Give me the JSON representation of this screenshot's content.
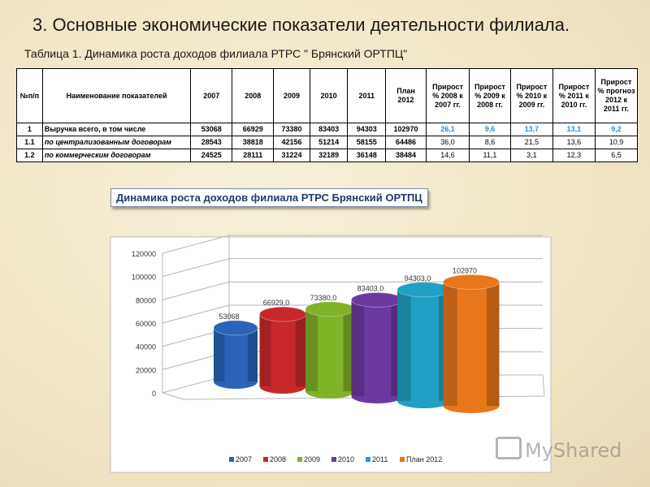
{
  "title": "3. Основные экономические показатели деятельности филиала.",
  "table_caption": "Таблица 1. Динамика роста доходов  филиала РТРС \" Брянский ОРТПЦ\"",
  "table": {
    "headers": [
      "№п/п",
      "Наименование показателей",
      "2007",
      "2008",
      "2009",
      "2010",
      "2011",
      "План 2012",
      "Прирост % 2008 к 2007 гг.",
      "Прирост % 2009 к 2008 гг.",
      "Прирост % 2010 к 2009 гг.",
      "Прирост % 2011 к 2010 гг.",
      "Прирост % прогноз 2012 к 2011 гг."
    ],
    "rows": [
      [
        "1",
        "Выручка всего, в том числе",
        "53068",
        "66929",
        "73380",
        "83403",
        "94303",
        "102970",
        "26,1",
        "9,6",
        "13,7",
        "13,1",
        "9,2"
      ],
      [
        "1.1",
        "по централизованным договорам",
        "28543",
        "38818",
        "42156",
        "51214",
        "58155",
        "64486",
        "36,0",
        "8,6",
        "21,5",
        "13,6",
        "10,9"
      ],
      [
        "1.2",
        "по коммерческим договорам",
        "24525",
        "28111",
        "31224",
        "32189",
        "36148",
        "38484",
        "14,6",
        "11,1",
        "3,1",
        "12,3",
        "6,5"
      ]
    ]
  },
  "watermark": "MyShared",
  "colors": {
    "2007": "#2a63b8",
    "2008": "#c8282a",
    "2009": "#7fb328",
    "2010": "#6a3aa0",
    "2011": "#1fa0c4",
    "План 2012": "#e8761a"
  },
  "chart_data": {
    "type": "bar",
    "style": "3d-cylinder",
    "title": "Динамика роста доходов филиала РТРС Брянский ОРТПЦ",
    "categories": [
      "2007",
      "2008",
      "2009",
      "2010",
      "2011",
      "План 2012"
    ],
    "values": [
      53068,
      66929,
      73380,
      83403,
      94303,
      102970
    ],
    "data_labels": [
      "53068",
      "66929,0",
      "73380,0",
      "83403,0",
      "94303,0",
      "102970"
    ],
    "y_ticks": [
      "0",
      "20000",
      "40000",
      "60000",
      "80000",
      "100000",
      "120000"
    ],
    "ylim": [
      0,
      120000
    ],
    "grid": true,
    "legend": "bottom"
  }
}
